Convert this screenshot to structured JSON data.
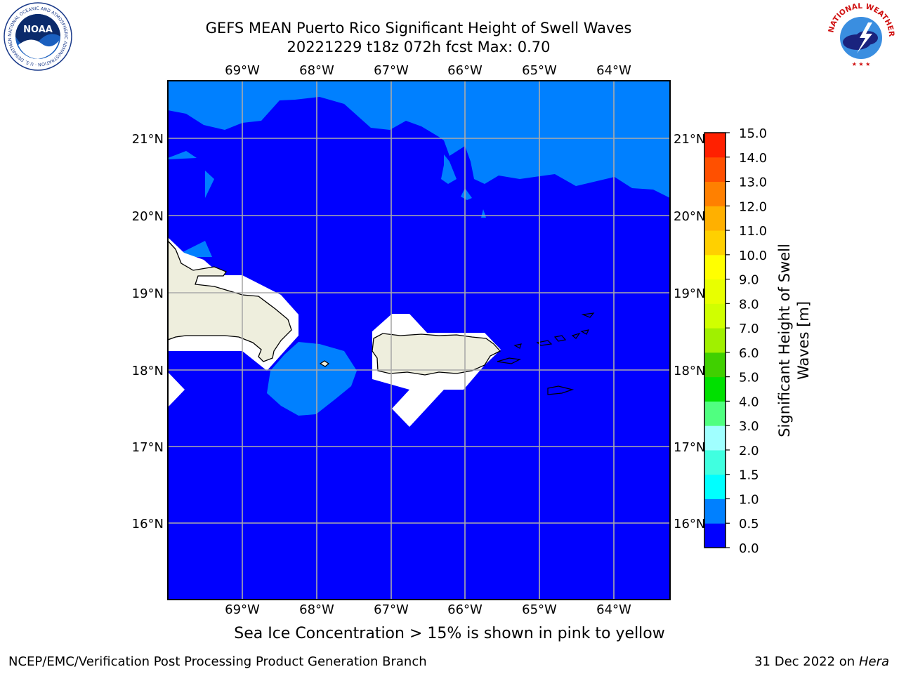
{
  "header": {
    "title_line1": "GEFS MEAN Puerto Rico Significant Height of Swell Waves",
    "title_line2": "20221229 t18z 072h fcst   Max: 0.70"
  },
  "logos": {
    "noaa_label": "NOAA",
    "noaa_ring_text": "NATIONAL OCEANIC AND ATMOSPHERIC ADMINISTRATION · U.S. DEPARTMENT OF COMMERCE",
    "nws_ring_text": "NATIONAL WEATHER SERVICE"
  },
  "map": {
    "lon_labels": [
      "69°W",
      "68°W",
      "67°W",
      "66°W",
      "65°W",
      "64°W"
    ],
    "lat_labels": [
      "21°N",
      "20°N",
      "19°N",
      "18°N",
      "17°N",
      "16°N"
    ],
    "colors": {
      "band_0_05": "#0000ff",
      "band_05_10": "#0080ff",
      "land": "#eeeedd",
      "grid": "#aaaaaa"
    }
  },
  "colorbar": {
    "label_line1": "Significant Height of Swell",
    "label_line2": "Waves [m]",
    "ticks": [
      "0.0",
      "0.5",
      "1.0",
      "1.5",
      "2.0",
      "3.0",
      "4.0",
      "5.0",
      "6.0",
      "7.0",
      "8.0",
      "9.0",
      "10.0",
      "11.0",
      "12.0",
      "13.0",
      "14.0",
      "15.0"
    ],
    "band_colors": [
      "#0000ff",
      "#0080ff",
      "#00ffff",
      "#40ffe0",
      "#a0ffff",
      "#50ff80",
      "#00e000",
      "#40d000",
      "#a0f000",
      "#d0ff00",
      "#e8ff00",
      "#ffff00",
      "#ffd000",
      "#ffb000",
      "#ff8000",
      "#ff5000",
      "#ff2000"
    ]
  },
  "caption": "Sea Ice Concentration > 15% is shown in pink to yellow",
  "footer": {
    "left": "NCEP/EMC/Verification Post Processing Product Generation Branch",
    "right_date": "31 Dec 2022 on",
    "right_host": "Hera"
  }
}
